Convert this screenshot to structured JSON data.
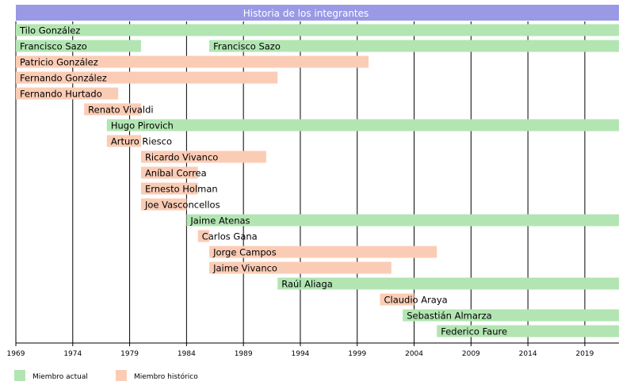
{
  "chart_data": {
    "type": "bar",
    "orientation": "horizontal-timeline",
    "title": "Historia de los integrantes",
    "x_range": [
      1969,
      2022
    ],
    "x_ticks": [
      1969,
      1974,
      1979,
      1984,
      1989,
      1994,
      1999,
      2004,
      2009,
      2014,
      2019
    ],
    "grid": "vertical",
    "colors": {
      "current": "#b2e5b2",
      "former": "#fbccb5",
      "title_bg": "#9999e6"
    },
    "legend": {
      "placement": "bottom-left",
      "items": [
        {
          "key": "current",
          "label": "Miembro actual"
        },
        {
          "key": "former",
          "label": "Miembro histórico"
        }
      ]
    },
    "members": [
      {
        "name": "Tilo González",
        "periods": [
          {
            "start": 1969,
            "end": 2022,
            "status": "current"
          }
        ]
      },
      {
        "name": "Francisco Sazo",
        "periods": [
          {
            "start": 1969,
            "end": 1980,
            "status": "current"
          },
          {
            "start": 1986,
            "end": 2022,
            "status": "current"
          }
        ]
      },
      {
        "name": "Patricio González",
        "periods": [
          {
            "start": 1969,
            "end": 2000,
            "status": "former"
          }
        ]
      },
      {
        "name": "Fernando González",
        "periods": [
          {
            "start": 1969,
            "end": 1992,
            "status": "former"
          }
        ]
      },
      {
        "name": "Fernando Hurtado",
        "periods": [
          {
            "start": 1969,
            "end": 1978,
            "status": "former"
          }
        ]
      },
      {
        "name": "Renato Vivaldi",
        "periods": [
          {
            "start": 1975,
            "end": 1980,
            "status": "former"
          }
        ]
      },
      {
        "name": "Hugo Pirovich",
        "periods": [
          {
            "start": 1977,
            "end": 2022,
            "status": "current"
          }
        ]
      },
      {
        "name": "Arturo Riesco",
        "periods": [
          {
            "start": 1977,
            "end": 1980,
            "status": "former"
          }
        ]
      },
      {
        "name": "Ricardo Vivanco",
        "periods": [
          {
            "start": 1980,
            "end": 1991,
            "status": "former"
          }
        ]
      },
      {
        "name": "Aníbal Correa",
        "periods": [
          {
            "start": 1980,
            "end": 1985,
            "status": "former"
          }
        ]
      },
      {
        "name": "Ernesto Holman",
        "periods": [
          {
            "start": 1980,
            "end": 1985,
            "status": "former"
          }
        ]
      },
      {
        "name": "Joe Vasconcellos",
        "periods": [
          {
            "start": 1980,
            "end": 1984,
            "status": "former"
          }
        ]
      },
      {
        "name": "Jaime Atenas",
        "periods": [
          {
            "start": 1984,
            "end": 2022,
            "status": "current"
          }
        ]
      },
      {
        "name": "Carlos Gana",
        "periods": [
          {
            "start": 1985,
            "end": 1986,
            "status": "former"
          }
        ]
      },
      {
        "name": "Jorge Campos",
        "periods": [
          {
            "start": 1986,
            "end": 2006,
            "status": "former"
          }
        ]
      },
      {
        "name": "Jaime Vivanco",
        "periods": [
          {
            "start": 1986,
            "end": 2002,
            "status": "former"
          }
        ]
      },
      {
        "name": "Raúl Aliaga",
        "periods": [
          {
            "start": 1992,
            "end": 2022,
            "status": "current"
          }
        ]
      },
      {
        "name": "Claudio Araya",
        "periods": [
          {
            "start": 2001,
            "end": 2004,
            "status": "former"
          }
        ]
      },
      {
        "name": "Sebastián Almarza",
        "periods": [
          {
            "start": 2003,
            "end": 2022,
            "status": "current"
          }
        ]
      },
      {
        "name": "Federico Faure",
        "periods": [
          {
            "start": 2006,
            "end": 2022,
            "status": "current"
          }
        ]
      }
    ]
  }
}
